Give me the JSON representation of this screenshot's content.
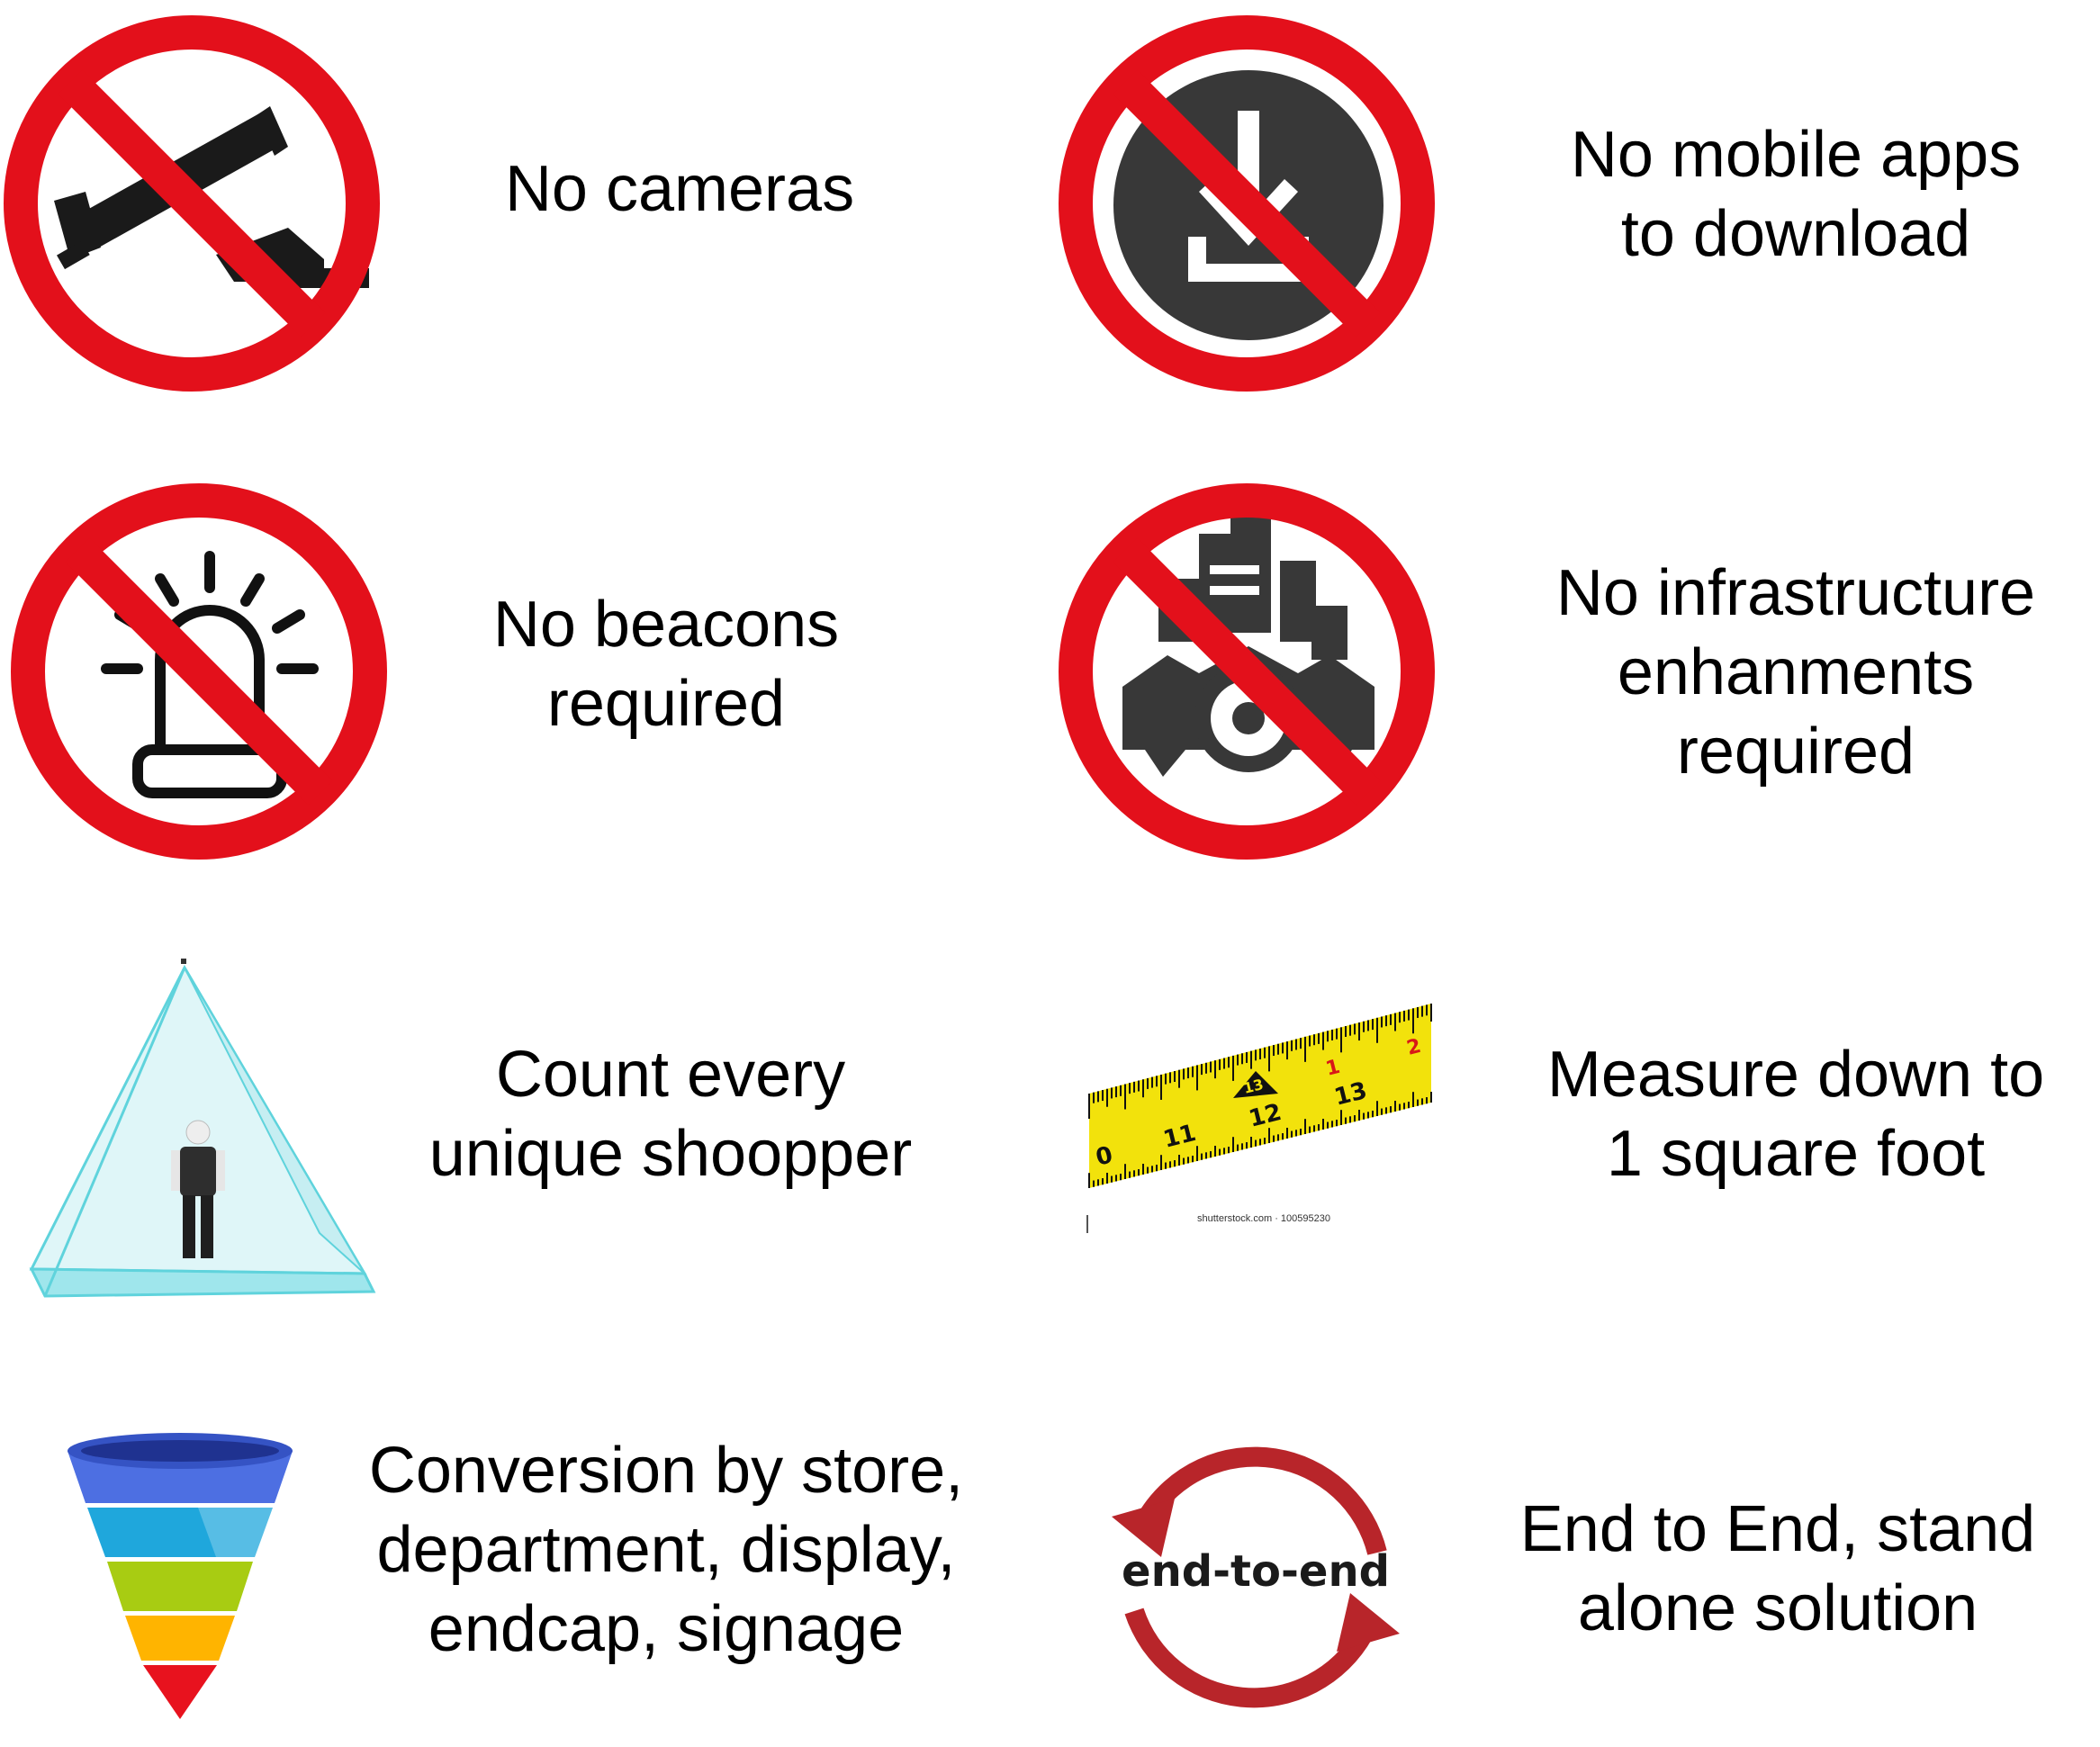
{
  "colors": {
    "prohibition_red": "#e3101b",
    "icon_dark": "#383838",
    "tape_yellow": "#f2e20c",
    "cycle_red": "#b8252a",
    "pyramid_cyan": "#5fd3dc",
    "funnel": [
      "#4d6fe2",
      "#1fa7dc",
      "#a8cc12",
      "#ffb400",
      "#e8121e"
    ]
  },
  "features": [
    {
      "icon": "camera-icon",
      "lines": [
        "No cameras"
      ]
    },
    {
      "icon": "download-icon",
      "lines": [
        "No mobile apps",
        "to download"
      ]
    },
    {
      "icon": "beacon-icon",
      "lines": [
        "No beacons",
        "required"
      ]
    },
    {
      "icon": "infrastructure-gear-icon",
      "lines": [
        "No infrastructure",
        "enhanments",
        "required"
      ]
    },
    {
      "icon": "pyramid-shopper-icon",
      "lines": [
        "Count every",
        "unique shoopper"
      ]
    },
    {
      "icon": "tape-measure-icon",
      "lines": [
        "Measure down to",
        "1 square foot"
      ]
    },
    {
      "icon": "funnel-icon",
      "lines": [
        "Conversion by store,",
        "department, display,",
        "endcap, signage"
      ]
    },
    {
      "icon": "end-to-end-cycle-icon",
      "lines": [
        "End to End, stand",
        "alone solution"
      ]
    }
  ],
  "tape": {
    "numbers": [
      "0",
      "11",
      "12",
      "13",
      "1",
      "2"
    ],
    "arrow_label": "13"
  },
  "watermark": "shutterstock.com · 100595230",
  "cycle_label": "end-to-end"
}
